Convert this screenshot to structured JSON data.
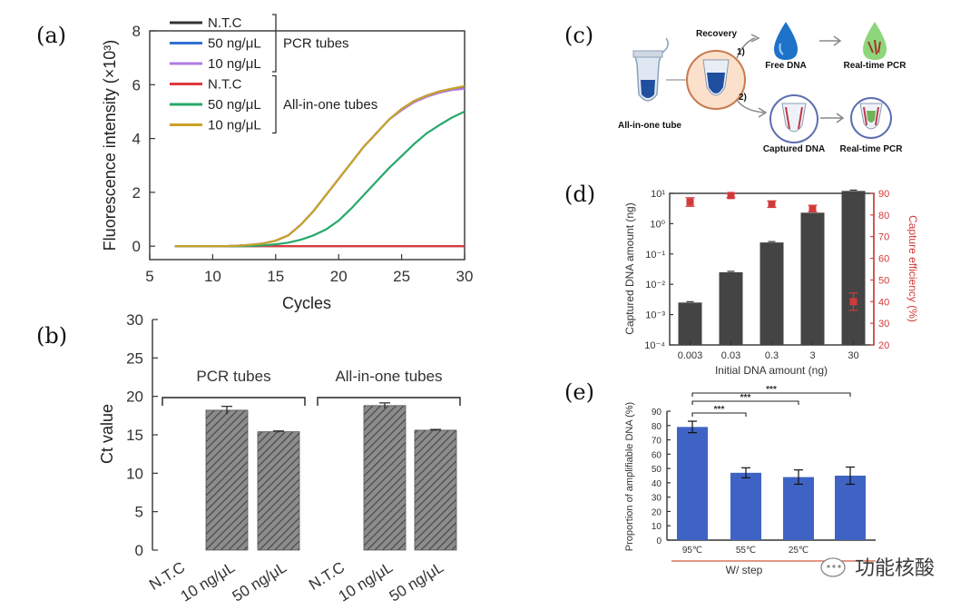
{
  "panel_labels": {
    "a": "(a)",
    "b": "(b)",
    "c": "(c)",
    "d": "(d)",
    "e": "(e)"
  },
  "watermark": "功能核酸",
  "chart_data": [
    {
      "id": "a",
      "type": "line",
      "title": "",
      "xlabel": "Cycles",
      "ylabel": "Fluorescence intensity (×10³)",
      "xlim": [
        5,
        30
      ],
      "ylim": [
        -0.5,
        8
      ],
      "xticks": [
        5,
        10,
        15,
        20,
        25,
        30
      ],
      "yticks": [
        0,
        2,
        4,
        6,
        8
      ],
      "legend_groups": [
        {
          "name": "PCR tubes",
          "entries": [
            0,
            1,
            2
          ]
        },
        {
          "name": "All-in-one tubes",
          "entries": [
            3,
            4,
            5
          ]
        }
      ],
      "series": [
        {
          "name": "N.T.C",
          "color": "#333333",
          "x": [
            7,
            8,
            9,
            10,
            11,
            12,
            13,
            14,
            15,
            16,
            17,
            18,
            19,
            20,
            21,
            22,
            23,
            24,
            25,
            26,
            27,
            28,
            29,
            30
          ],
          "y": [
            0,
            0,
            0,
            0,
            0,
            0,
            0,
            0,
            0,
            0,
            0,
            0,
            0,
            0,
            0,
            0,
            0,
            0,
            0,
            0,
            0,
            0,
            0,
            0
          ]
        },
        {
          "name": "50 ng/μL",
          "color": "#2f6fd1",
          "x": [
            7,
            8,
            9,
            10,
            11,
            12,
            13,
            14,
            15,
            16,
            17,
            18,
            19,
            20,
            21,
            22,
            23,
            24,
            25,
            26,
            27,
            28,
            29,
            30
          ],
          "y": [
            0,
            0,
            0,
            0,
            0,
            0.02,
            0.05,
            0.1,
            0.2,
            0.4,
            0.8,
            1.3,
            1.9,
            2.5,
            3.1,
            3.7,
            4.2,
            4.7,
            5.1,
            5.4,
            5.6,
            5.75,
            5.85,
            5.9
          ]
        },
        {
          "name": "10 ng/μL",
          "color": "#b07be0",
          "x": [
            7,
            8,
            9,
            10,
            11,
            12,
            13,
            14,
            15,
            16,
            17,
            18,
            19,
            20,
            21,
            22,
            23,
            24,
            25,
            26,
            27,
            28,
            29,
            30
          ],
          "y": [
            0,
            0,
            0,
            0,
            0,
            0.02,
            0.05,
            0.1,
            0.2,
            0.4,
            0.8,
            1.3,
            1.9,
            2.5,
            3.1,
            3.7,
            4.2,
            4.7,
            5.05,
            5.35,
            5.55,
            5.7,
            5.8,
            5.85
          ]
        },
        {
          "name": "N.T.C",
          "color": "#e0383b",
          "x": [
            7,
            8,
            9,
            10,
            11,
            12,
            13,
            14,
            15,
            16,
            17,
            18,
            19,
            20,
            21,
            22,
            23,
            24,
            25,
            26,
            27,
            28,
            29,
            30
          ],
          "y": [
            0,
            0,
            0,
            0,
            0,
            0,
            0,
            0,
            0,
            0,
            0,
            0,
            0,
            0,
            0,
            0,
            0,
            0,
            0,
            0,
            0,
            0,
            0,
            0
          ]
        },
        {
          "name": "50 ng/μL",
          "color": "#27a86a",
          "x": [
            7,
            8,
            9,
            10,
            11,
            12,
            13,
            14,
            15,
            16,
            17,
            18,
            19,
            20,
            21,
            22,
            23,
            24,
            25,
            26,
            27,
            28,
            29,
            30
          ],
          "y": [
            0,
            0,
            0,
            0,
            0,
            0,
            0.01,
            0.03,
            0.07,
            0.13,
            0.24,
            0.4,
            0.62,
            0.95,
            1.4,
            1.9,
            2.4,
            2.9,
            3.35,
            3.8,
            4.2,
            4.5,
            4.78,
            5.0
          ]
        },
        {
          "name": "10 ng/μL",
          "color": "#c9a227",
          "x": [
            7,
            8,
            9,
            10,
            11,
            12,
            13,
            14,
            15,
            16,
            17,
            18,
            19,
            20,
            21,
            22,
            23,
            24,
            25,
            26,
            27,
            28,
            29,
            30
          ],
          "y": [
            0,
            0,
            0,
            0,
            0,
            0.02,
            0.05,
            0.1,
            0.2,
            0.4,
            0.8,
            1.3,
            1.9,
            2.5,
            3.1,
            3.7,
            4.2,
            4.7,
            5.1,
            5.4,
            5.6,
            5.75,
            5.85,
            5.95
          ]
        }
      ]
    },
    {
      "id": "b",
      "type": "bar",
      "title": "",
      "xlabel": "",
      "ylabel": "Ct value",
      "ylim": [
        0,
        30
      ],
      "yticks": [
        0,
        5,
        10,
        15,
        20,
        25,
        30
      ],
      "categories": [
        "N.T.C",
        "10 ng/μL",
        "50 ng/μL",
        "N.T.C",
        "10 ng/μL",
        "50 ng/μL"
      ],
      "values": [
        null,
        18.2,
        15.4,
        null,
        18.8,
        15.6
      ],
      "errors": [
        0,
        0.5,
        0.1,
        0,
        0.35,
        0.1
      ],
      "groups": [
        {
          "name": "PCR tubes",
          "members": [
            0,
            1,
            2
          ]
        },
        {
          "name": "All-in-one tubes",
          "members": [
            3,
            4,
            5
          ]
        }
      ]
    },
    {
      "id": "d",
      "type": "bar",
      "title": "",
      "xlabel": "Initial DNA amount (ng)",
      "ylabel": "Captured DNA amount (ng)",
      "y2label": "Capture efficiency (%)",
      "yscale": "log",
      "ylim": [
        0.0001,
        10
      ],
      "yticks": [
        "10⁻⁴",
        "10⁻³",
        "10⁻²",
        "10⁻¹",
        "10⁰",
        "10¹"
      ],
      "y2lim": [
        20,
        90
      ],
      "y2ticks": [
        20,
        30,
        40,
        50,
        60,
        70,
        80,
        90
      ],
      "categories": [
        "0.003",
        "0.03",
        "0.3",
        "3",
        "30"
      ],
      "values": [
        0.0025,
        0.025,
        0.24,
        2.3,
        12
      ],
      "series2": {
        "name": "Capture efficiency",
        "color": "#d23a3a",
        "values": [
          86,
          89,
          85,
          83,
          40
        ],
        "errors": [
          2,
          1,
          1.5,
          1.5,
          4
        ]
      }
    },
    {
      "id": "e",
      "type": "bar",
      "title": "",
      "xlabel": "W/ step",
      "ylabel": "Proportion of amplifiable DNA (%)",
      "ylim": [
        0,
        90
      ],
      "yticks": [
        0,
        10,
        20,
        30,
        40,
        50,
        60,
        70,
        80,
        90
      ],
      "categories": [
        "95℃",
        "55℃",
        "25℃",
        ""
      ],
      "values": [
        79,
        47,
        44,
        45
      ],
      "errors": [
        4,
        3.5,
        5,
        6
      ],
      "significance": [
        {
          "from": 0,
          "to": 1,
          "label": "***"
        },
        {
          "from": 0,
          "to": 2,
          "label": "***"
        },
        {
          "from": 0,
          "to": 3,
          "label": "***"
        }
      ]
    }
  ],
  "diagram_c": {
    "tube_label": "All-in-one tube",
    "route1": "1)",
    "route2": "2)",
    "recovery_label": "Recovery",
    "free_dna_label": "Free DNA",
    "captured_dna_label": "Captured DNA",
    "realtime_pcr_label": "Real-time PCR"
  }
}
